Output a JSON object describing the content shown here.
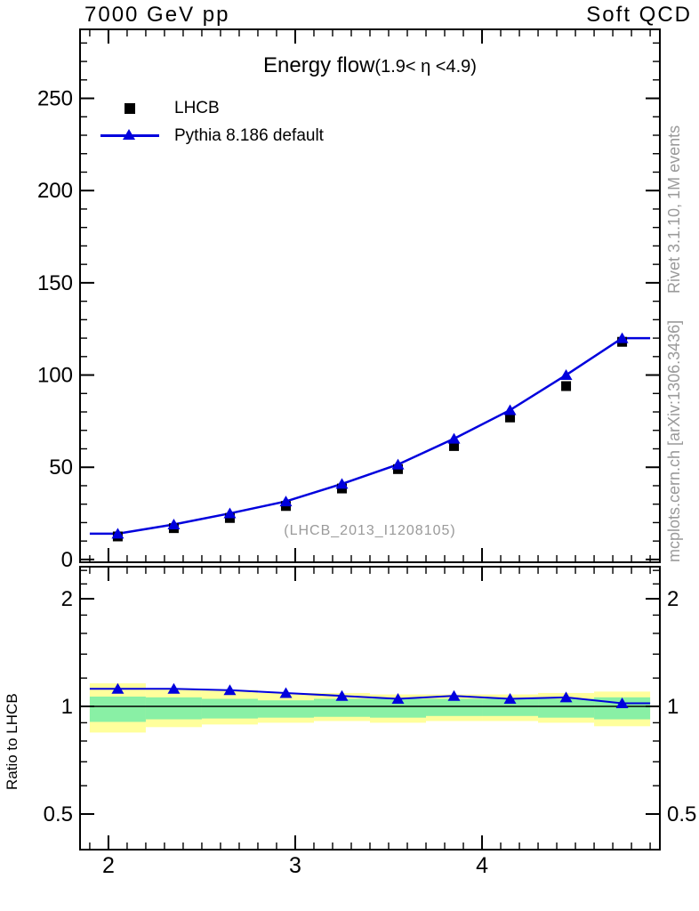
{
  "header": {
    "left": "7000 GeV pp",
    "right": "Soft QCD"
  },
  "side_notes": {
    "top": "Rivet 3.1.10,  1M events",
    "bottom": "mcplots.cern.ch [arXiv:1306.3436]"
  },
  "watermark": "(LHCB_2013_I1208105)",
  "colors": {
    "mc_blue": "#0000dd",
    "data_black": "#000000",
    "band_yellow": "#ffff9c",
    "band_green": "#89f0a5",
    "gray_text": "#9a9a9a"
  },
  "legend": [
    {
      "label": "LHCB",
      "marker": "square"
    },
    {
      "label": "Pythia 8.186 default",
      "marker": "triangle-line"
    }
  ],
  "chart_data": {
    "type": "line",
    "title": "Energy flow",
    "title_note": "(1.9< η <4.9)",
    "xlabel": "",
    "ylabel": "",
    "grid": false,
    "x_bin_edges": [
      1.9,
      2.2,
      2.5,
      2.8,
      3.1,
      3.4,
      3.7,
      4.0,
      4.3,
      4.6,
      4.9
    ],
    "x_bin_centers": [
      2.05,
      2.35,
      2.65,
      2.95,
      3.25,
      3.55,
      3.85,
      4.15,
      4.45,
      4.75
    ],
    "series": [
      {
        "name": "LHCB",
        "marker": "square",
        "color": "#000000",
        "line": false,
        "values": [
          12.5,
          17,
          22.5,
          29,
          38.5,
          49,
          61.5,
          77,
          94,
          118
        ]
      },
      {
        "name": "Pythia 8.186 default",
        "marker": "triangle",
        "color": "#0000dd",
        "line": true,
        "values": [
          14,
          19,
          25,
          31.5,
          41,
          51.5,
          65.5,
          81,
          100,
          120
        ]
      }
    ],
    "xlim": [
      1.848,
      4.952
    ],
    "ylim": [
      -1.5,
      287.4
    ],
    "xticks_major": [
      2,
      3,
      4
    ],
    "xticks_minor_step": 0.1,
    "xticks_minor_range": [
      1.9,
      4.9
    ],
    "yticks_major": [
      0,
      50,
      100,
      150,
      200,
      250
    ],
    "yticks_minor_step": 10,
    "ratio_panel": {
      "ylabel": "Ratio to LHCB",
      "scale": "log",
      "ylim": [
        0.4,
        2.46
      ],
      "yticks_major": [
        2,
        1,
        0.5
      ],
      "ytick_labels": [
        "2",
        "1",
        "0.5"
      ],
      "yticks_minor": [
        0.4,
        0.6,
        0.7,
        0.8,
        0.9,
        1.2,
        1.4,
        1.6,
        1.8,
        2.2,
        2.4
      ],
      "reference_line": 1,
      "values": [
        1.12,
        1.12,
        1.11,
        1.09,
        1.07,
        1.05,
        1.07,
        1.05,
        1.06,
        1.02
      ],
      "band_yellow_hi": [
        1.16,
        1.12,
        1.11,
        1.09,
        1.09,
        1.08,
        1.08,
        1.08,
        1.09,
        1.1
      ],
      "band_yellow_lo": [
        0.845,
        0.875,
        0.89,
        0.9,
        0.91,
        0.9,
        0.91,
        0.91,
        0.9,
        0.88
      ],
      "band_green_hi": [
        1.065,
        1.06,
        1.05,
        1.04,
        1.05,
        1.05,
        1.05,
        1.05,
        1.05,
        1.06
      ],
      "band_green_lo": [
        0.905,
        0.92,
        0.925,
        0.93,
        0.935,
        0.93,
        0.94,
        0.94,
        0.93,
        0.92
      ]
    }
  }
}
